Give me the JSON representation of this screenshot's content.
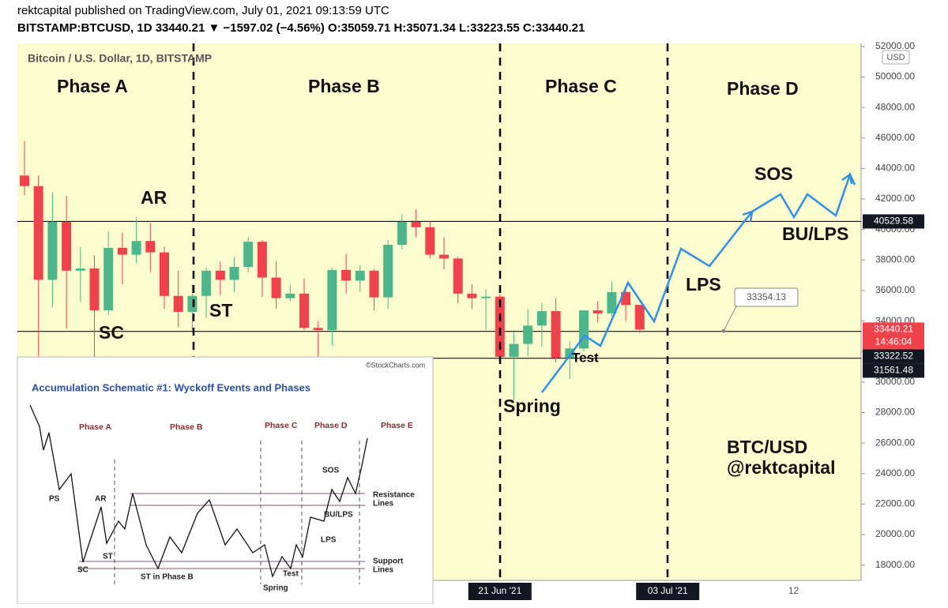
{
  "header": {
    "line1": "rektcapital published on TradingView.com, July 01, 2021 09:13:59 UTC",
    "line2": "BITSTAMP:BTCUSD, 1D  33440.21 ▼ −1597.02 (−4.56%)  O:35059.71  H:35071.34  L:33223.55  C:33440.21"
  },
  "chart_data": {
    "type": "candlestick",
    "title": "Bitcoin / U.S. Dollar, 1D, BITSTAMP",
    "axis_unit": "USD",
    "categories": [
      null,
      null,
      null,
      null,
      null,
      null,
      null,
      null,
      null,
      null,
      null,
      null,
      null,
      null,
      null,
      null,
      null,
      null,
      null,
      null,
      null,
      null,
      null,
      null,
      null,
      null,
      null,
      null,
      null,
      null,
      null,
      null,
      null,
      null,
      "21 Jun '21",
      null,
      null,
      null,
      null,
      null,
      null,
      null,
      null,
      null,
      null,
      null,
      "03 Jul '21",
      null,
      null,
      null,
      null,
      null,
      null,
      null,
      null,
      "12",
      null,
      null,
      null,
      null
    ],
    "open": [
      43538,
      42850,
      36700,
      40500,
      37300,
      37450,
      34700,
      38800,
      38350,
      39250,
      38500,
      35650,
      34600,
      35650,
      37300,
      36700,
      37550,
      39200,
      36850,
      35500,
      35800,
      33550,
      33400,
      37350,
      36650,
      37300,
      35550,
      39000,
      40500,
      40150,
      38350,
      38100,
      35800,
      35500,
      35600,
      31650,
      32500,
      33700,
      34650,
      31600,
      32200,
      34700,
      34500,
      35900,
      35059.71,
      null,
      null,
      null,
      null,
      null,
      null,
      null,
      null,
      null,
      null,
      null,
      null,
      null,
      null,
      null
    ],
    "high": [
      45800,
      43550,
      42450,
      42200,
      38850,
      38300,
      39900,
      39800,
      40800,
      40400,
      38850,
      37300,
      36400,
      37500,
      37900,
      38200,
      39500,
      39300,
      37900,
      36400,
      36800,
      34000,
      37500,
      38400,
      37650,
      37400,
      39300,
      41000,
      41300,
      40500,
      39500,
      38200,
      36400,
      36100,
      35750,
      33300,
      34800,
      35200,
      35500,
      32700,
      34700,
      35300,
      36600,
      36100,
      35071.34,
      null,
      null,
      null,
      null,
      null,
      null,
      null,
      null,
      null,
      null,
      null,
      null,
      null,
      null,
      null
    ],
    "low": [
      42250,
      30000,
      34900,
      33500,
      35250,
      31100,
      34400,
      36400,
      37800,
      37200,
      34800,
      33600,
      33400,
      34200,
      35700,
      35900,
      37200,
      35600,
      34800,
      35300,
      33400,
      31000,
      32400,
      35800,
      35900,
      34700,
      34800,
      38700,
      39500,
      38100,
      37400,
      35150,
      34800,
      33400,
      31300,
      28800,
      31700,
      32300,
      31300,
      30200,
      32000,
      33900,
      34300,
      34000,
      33223.55,
      null,
      null,
      null,
      null,
      null,
      null,
      null,
      null,
      null,
      null,
      null,
      null,
      null,
      null,
      null
    ],
    "close": [
      42850,
      36700,
      40500,
      37300,
      37450,
      34700,
      38800,
      38350,
      39250,
      38500,
      35650,
      34600,
      35650,
      37300,
      36700,
      37550,
      39200,
      36850,
      35500,
      35800,
      33550,
      33400,
      37350,
      36650,
      37300,
      35550,
      39000,
      40500,
      40150,
      38350,
      38100,
      35800,
      35500,
      35600,
      31650,
      32500,
      33700,
      34650,
      31600,
      32200,
      34700,
      34500,
      35900,
      35050,
      33440.21,
      null,
      null,
      null,
      null,
      null,
      null,
      null,
      null,
      null,
      null,
      null,
      null,
      null,
      null,
      null
    ],
    "up_color": "#4db68a",
    "down_color": "#f0424b",
    "ylim": [
      17000,
      52200
    ],
    "yticks": [
      {
        "value": 18000,
        "label": "18000.00"
      },
      {
        "value": 20000,
        "label": "20000.00"
      },
      {
        "value": 22000,
        "label": "22000.00"
      },
      {
        "value": 24000,
        "label": "24000.00"
      },
      {
        "value": 26000,
        "label": "26000.00"
      },
      {
        "value": 28000,
        "label": "28000.00"
      },
      {
        "value": 30000,
        "label": "30000.00"
      },
      {
        "value": 32000,
        "label": "32000.00"
      },
      {
        "value": 34000,
        "label": "34000.00"
      },
      {
        "value": 36000,
        "label": "36000.00"
      },
      {
        "value": 38000,
        "label": "38000.00"
      },
      {
        "value": 40000,
        "label": "40000.00"
      },
      {
        "value": 42000,
        "label": "42000.00"
      },
      {
        "value": 44000,
        "label": "44000.00"
      },
      {
        "value": 46000,
        "label": "46000.00"
      },
      {
        "value": 48000,
        "label": "48000.00"
      },
      {
        "value": 50000,
        "label": "50000.00"
      },
      {
        "value": 52000,
        "label": "52000.00"
      }
    ],
    "hlines": [
      {
        "value": 40529.58,
        "label": "40529.58"
      },
      {
        "value": 33322.52,
        "label": "33322.52"
      },
      {
        "value": 31561.48,
        "label": "31561.48"
      }
    ],
    "last_price": {
      "value": 33440.21,
      "label": "33440.21",
      "countdown": "14:46:04"
    },
    "callout": {
      "value": 33354.13,
      "label": "33354.13"
    },
    "phases": [
      "Phase A",
      "Phase B",
      "Phase C",
      "Phase D"
    ],
    "annotations": {
      "ar": "AR",
      "st": "ST",
      "sc": "SC",
      "spring": "Spring",
      "test": "Test",
      "lps": "LPS",
      "sos": "SOS",
      "bu_lps": "BU/LPS",
      "pair": "BTC/USD",
      "handle": "@rektcapital"
    }
  },
  "inset": {
    "credit": "©StockCharts.com",
    "title": "Accumulation Schematic #1: Wyckoff Events and Phases",
    "phases": [
      "Phase A",
      "Phase B",
      "Phase C",
      "Phase D",
      "Phase E"
    ],
    "events": {
      "ps": "PS",
      "ar": "AR",
      "sc": "SC",
      "st": "ST",
      "st_b": "ST in Phase B",
      "spring": "Spring",
      "test": "Test",
      "lps": "LPS",
      "bu_lps": "BU/LPS",
      "sos": "SOS"
    },
    "resistance": [
      "Resistance",
      "Lines"
    ],
    "support": [
      "Support",
      "Lines"
    ]
  }
}
